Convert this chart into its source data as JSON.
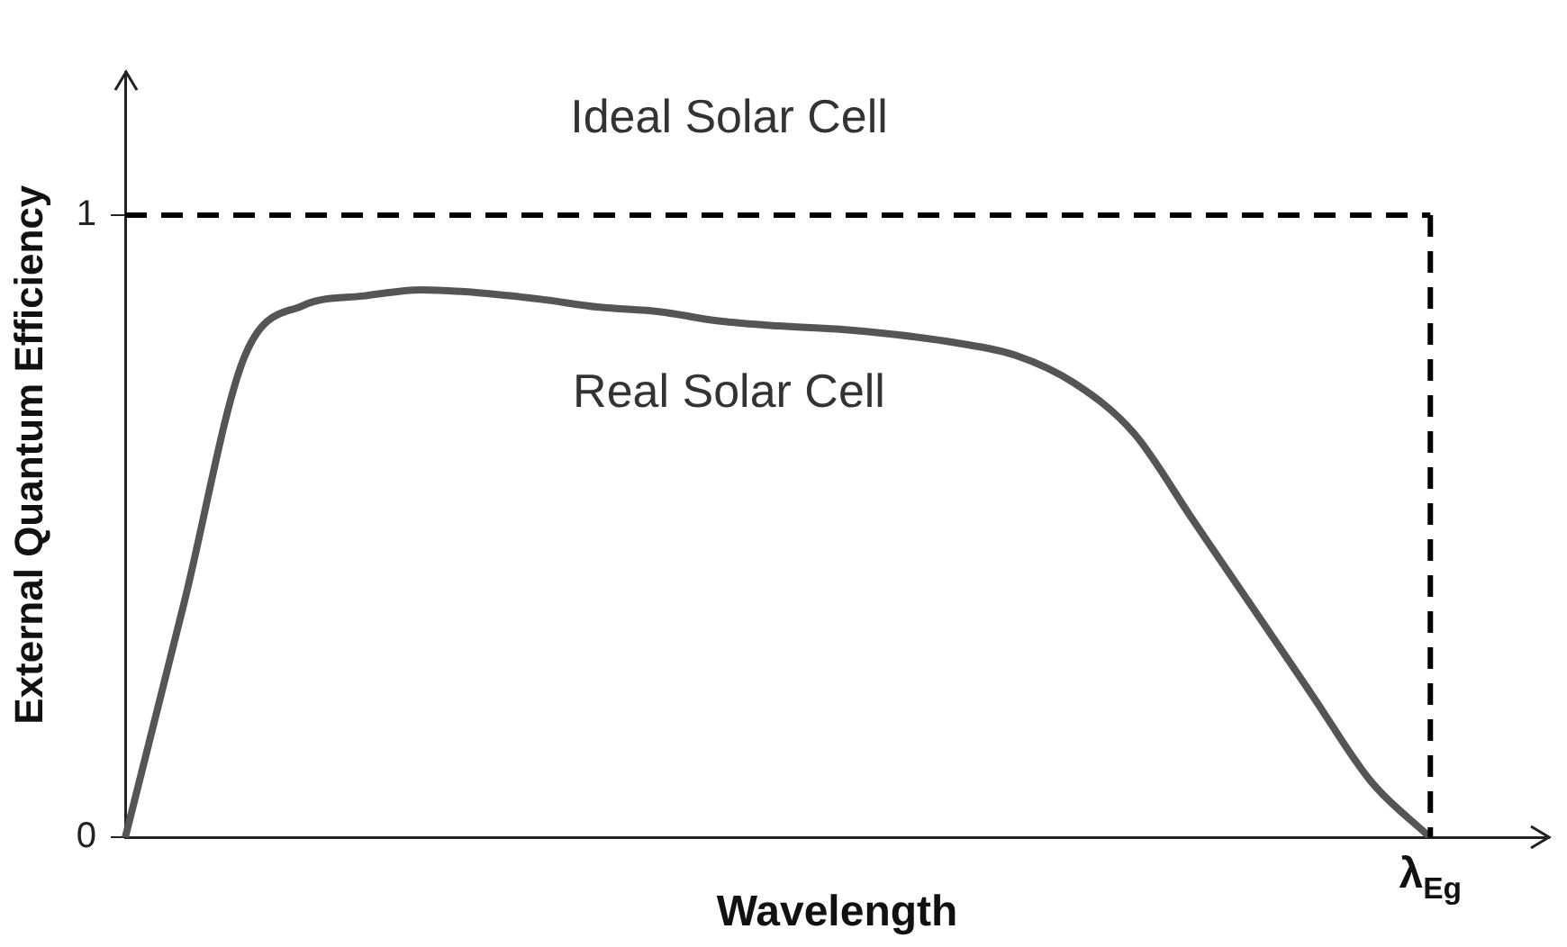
{
  "chart_data": {
    "type": "line",
    "xlabel": "Wavelength",
    "ylabel": "External Quantum Efficiency",
    "categories": [
      null,
      null,
      null,
      null,
      null,
      null,
      null,
      null,
      null,
      null,
      null,
      null,
      null,
      null,
      null,
      null,
      null,
      null,
      null,
      null,
      null,
      null,
      "λ$_{Eg}$",
      null,
      null
    ],
    "ylim": [
      0,
      1.23
    ],
    "yticks": [
      0,
      1
    ],
    "grid": false,
    "legend": false,
    "marker": "none",
    "series": [
      {
        "name": "Ideal Solar Cell",
        "color": "#000000",
        "line_style": "dashed",
        "values": [
          1,
          1,
          1,
          1,
          1,
          1,
          1,
          1,
          1,
          1,
          1,
          1,
          1,
          1,
          1,
          1,
          1,
          1,
          1,
          1,
          1,
          1,
          1,
          null,
          null
        ]
      },
      {
        "color": "#000000",
        "line_style": "dashed",
        "x": [
          "λ$_{Eg}$",
          "λ$_{Eg}$"
        ],
        "values": [
          1,
          0
        ]
      },
      {
        "name": "Real Solar Cell",
        "color": "#555555",
        "line_style": "solid",
        "values": [
          0,
          0.38,
          0.77,
          0.855,
          0.87,
          0.88,
          0.875,
          0.865,
          0.852,
          0.845,
          0.83,
          0.822,
          0.817,
          0.808,
          0.795,
          0.775,
          0.73,
          0.65,
          0.51,
          0.37,
          0.23,
          0.09,
          0,
          null,
          null
        ]
      }
    ]
  }
}
